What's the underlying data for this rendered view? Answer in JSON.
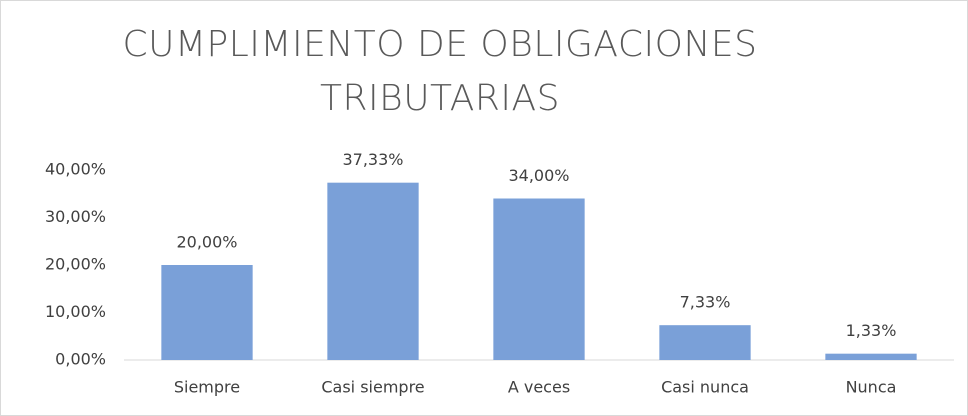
{
  "chart_data": {
    "type": "bar",
    "title": "CUMPLIMIENTO DE OBLIGACIONES TRIBUTARIAS",
    "categories": [
      "Siempre",
      "Casi siempre",
      "A veces",
      "Casi nunca",
      "Nunca"
    ],
    "values": [
      20,
      37.33,
      34,
      7.33,
      1.33
    ],
    "value_labels": [
      "20,00%",
      "37,33%",
      "34,00%",
      "7,33%",
      "1,33%"
    ],
    "color": "#7aa0d8",
    "ylim": [
      0,
      40
    ],
    "yticks": [
      {
        "value": 0,
        "label": "0,00%"
      },
      {
        "value": 10,
        "label": "10,00%"
      },
      {
        "value": 20,
        "label": "20,00%"
      },
      {
        "value": 30,
        "label": "30,00%"
      },
      {
        "value": 40,
        "label": "40,00%"
      }
    ],
    "grid": false
  }
}
